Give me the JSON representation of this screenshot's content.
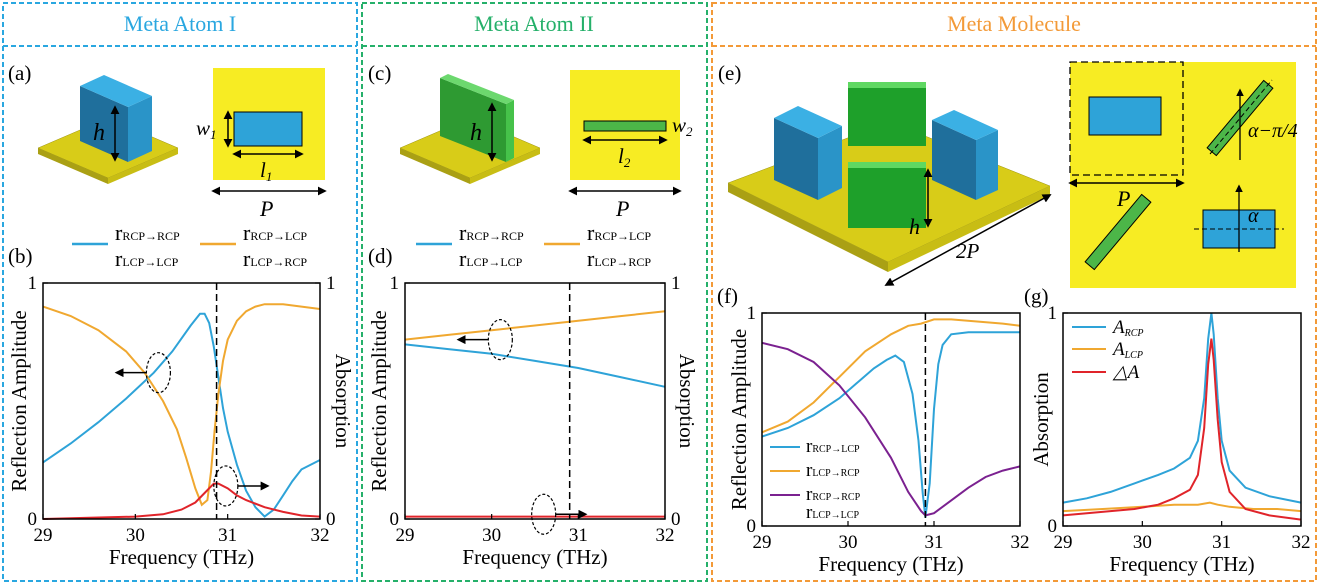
{
  "colors": {
    "blue": "#2ea3d8",
    "orange": "#f0a830",
    "red": "#e0242a",
    "purple": "#7b2190",
    "green": "#4cb648",
    "yellow_plate": "#f7ec23",
    "dark_blue_block": "#1f6f9c",
    "section_blue": "#2aa7e0",
    "section_green": "#25b06a",
    "section_orange": "#f39a38"
  },
  "sections": {
    "atom1": "Meta Atom I",
    "atom2": "Meta Atom II",
    "molecule": "Meta Molecule"
  },
  "panel_labels": {
    "a": "(a)",
    "b": "(b)",
    "c": "(c)",
    "d": "(d)",
    "e": "(e)",
    "f": "(f)",
    "g": "(g)"
  },
  "diagrams": {
    "a": {
      "h": "h",
      "w": "w",
      "w_sub": "1",
      "l": "l",
      "l_sub": "1",
      "p": "P"
    },
    "c": {
      "h": "h",
      "w": "w",
      "w_sub": "2",
      "l": "l",
      "l_sub": "2",
      "p": "P"
    },
    "e": {
      "h": "h",
      "two_p": "2P",
      "p": "P",
      "angle1": "α−π/4",
      "angle2": "α"
    }
  },
  "legend_top": {
    "rcp_rcp": {
      "main": "r",
      "sub": "RCP→RCP"
    },
    "lcp_lcp": {
      "main": "r",
      "sub": "LCP→LCP"
    },
    "rcp_lcp": {
      "main": "r",
      "sub": "RCP→LCP"
    },
    "lcp_rcp": {
      "main": "r",
      "sub": "LCP→RCP"
    }
  },
  "legend_f": {
    "rcp_lcp": {
      "main": "r",
      "sub": "RCP→LCP"
    },
    "lcp_rcp": {
      "main": "r",
      "sub": "LCP→RCP"
    },
    "rcp_rcp": {
      "main": "r",
      "sub": "RCP→RCP"
    },
    "lcp_lcp": {
      "main": "r",
      "sub": "LCP→LCP"
    }
  },
  "legend_g": {
    "a_rcp": {
      "main": "A",
      "sub": "RCP"
    },
    "a_lcp": {
      "main": "A",
      "sub": "LCP"
    },
    "delta": "△A"
  },
  "chart_data": [
    {
      "id": "b",
      "type": "line",
      "xlabel": "Frequency (THz)",
      "ylabel": "Reflection Amplitude",
      "y2label": "Absorption",
      "xlim": [
        29,
        32
      ],
      "ylim": [
        0,
        1
      ],
      "y2lim": [
        0,
        1
      ],
      "xticks": [
        "29",
        "30",
        "31",
        "32"
      ],
      "yticks_left": [
        "0",
        "1"
      ],
      "yticks_right": [
        "0",
        "1"
      ],
      "marker_x": 30.88,
      "series": [
        {
          "key": "rcp_rcp_lcp_lcp",
          "color": "blue",
          "axis": "left",
          "x": [
            29.0,
            29.3,
            29.6,
            29.9,
            30.2,
            30.4,
            30.6,
            30.7,
            30.75,
            30.8,
            30.85,
            30.9,
            30.95,
            31.0,
            31.1,
            31.2,
            31.3,
            31.4,
            31.5,
            31.6,
            31.7,
            31.8,
            32.0
          ],
          "y": [
            0.24,
            0.32,
            0.41,
            0.51,
            0.62,
            0.71,
            0.82,
            0.87,
            0.87,
            0.83,
            0.73,
            0.6,
            0.47,
            0.37,
            0.23,
            0.12,
            0.05,
            0.01,
            0.04,
            0.1,
            0.16,
            0.21,
            0.25
          ]
        },
        {
          "key": "rcp_lcp_lcp_rcp",
          "color": "orange",
          "axis": "left",
          "x": [
            29.0,
            29.3,
            29.6,
            29.9,
            30.1,
            30.3,
            30.45,
            30.55,
            30.65,
            30.72,
            30.78,
            30.82,
            30.86,
            30.9,
            30.95,
            31.0,
            31.1,
            31.2,
            31.3,
            31.4,
            31.6,
            31.8,
            32.0
          ],
          "y": [
            0.9,
            0.86,
            0.8,
            0.71,
            0.62,
            0.5,
            0.38,
            0.26,
            0.13,
            0.06,
            0.08,
            0.2,
            0.38,
            0.53,
            0.67,
            0.76,
            0.84,
            0.88,
            0.9,
            0.91,
            0.91,
            0.9,
            0.89
          ]
        },
        {
          "key": "absorption",
          "color": "red",
          "axis": "right",
          "x": [
            29.0,
            29.5,
            30.0,
            30.3,
            30.5,
            30.65,
            30.75,
            30.85,
            30.9,
            31.0,
            31.1,
            31.2,
            31.4,
            31.6,
            31.8,
            32.0
          ],
          "y": [
            0.0,
            0.005,
            0.01,
            0.02,
            0.04,
            0.07,
            0.11,
            0.15,
            0.15,
            0.13,
            0.1,
            0.08,
            0.05,
            0.03,
            0.015,
            0.01
          ]
        }
      ],
      "annotations": [
        {
          "type": "ellipse",
          "x": 30.25,
          "y": 0.62,
          "arrow": "left"
        },
        {
          "type": "ellipse",
          "x": 30.98,
          "y": 0.14,
          "arrow": "right"
        }
      ]
    },
    {
      "id": "d",
      "type": "line",
      "xlabel": "Frequency (THz)",
      "ylabel": "Reflection Amplitude",
      "y2label": "Absorption",
      "xlim": [
        29,
        32
      ],
      "ylim": [
        0,
        1
      ],
      "y2lim": [
        0,
        1
      ],
      "xticks": [
        "29",
        "30",
        "31",
        "32"
      ],
      "yticks_left": [
        "0",
        "1"
      ],
      "yticks_right": [
        "0",
        "1"
      ],
      "marker_x": 30.9,
      "series": [
        {
          "key": "rcp_rcp_lcp_lcp",
          "color": "blue",
          "axis": "left",
          "x": [
            29.0,
            29.5,
            30.0,
            30.5,
            31.0,
            31.5,
            32.0
          ],
          "y": [
            0.74,
            0.72,
            0.7,
            0.67,
            0.64,
            0.6,
            0.56
          ]
        },
        {
          "key": "rcp_lcp_lcp_rcp",
          "color": "orange",
          "axis": "left",
          "x": [
            29.0,
            29.5,
            30.0,
            30.5,
            31.0,
            31.5,
            32.0
          ],
          "y": [
            0.76,
            0.78,
            0.8,
            0.82,
            0.84,
            0.86,
            0.88
          ]
        },
        {
          "key": "absorption",
          "color": "red",
          "axis": "right",
          "x": [
            29.0,
            29.5,
            30.0,
            30.5,
            31.0,
            31.5,
            32.0
          ],
          "y": [
            0.01,
            0.01,
            0.01,
            0.01,
            0.01,
            0.01,
            0.01
          ]
        }
      ],
      "annotations": [
        {
          "type": "ellipse",
          "x": 30.1,
          "y": 0.76,
          "arrow": "left"
        },
        {
          "type": "ellipse",
          "x": 30.6,
          "y": 0.02,
          "arrow": "right"
        }
      ]
    },
    {
      "id": "f",
      "type": "line",
      "xlabel": "Frequency (THz)",
      "ylabel": "Reflection Amplitude",
      "xlim": [
        29,
        32
      ],
      "ylim": [
        0,
        1
      ],
      "xticks": [
        "29",
        "30",
        "31",
        "32"
      ],
      "yticks_left": [
        "0",
        "1"
      ],
      "marker_x": 30.9,
      "series": [
        {
          "key": "rcp_lcp",
          "color": "blue",
          "x": [
            29.0,
            29.3,
            29.6,
            29.9,
            30.1,
            30.3,
            30.45,
            30.55,
            30.65,
            30.75,
            30.82,
            30.87,
            30.9,
            30.95,
            31.0,
            31.05,
            31.1,
            31.2,
            31.4,
            31.7,
            32.0
          ],
          "y": [
            0.42,
            0.46,
            0.52,
            0.6,
            0.67,
            0.74,
            0.78,
            0.8,
            0.77,
            0.62,
            0.4,
            0.15,
            0.04,
            0.2,
            0.55,
            0.76,
            0.85,
            0.9,
            0.91,
            0.91,
            0.91
          ]
        },
        {
          "key": "lcp_rcp",
          "color": "orange",
          "x": [
            29.0,
            29.3,
            29.6,
            29.9,
            30.2,
            30.5,
            30.7,
            30.85,
            31.0,
            31.2,
            31.5,
            31.8,
            32.0
          ],
          "y": [
            0.44,
            0.49,
            0.58,
            0.7,
            0.82,
            0.9,
            0.94,
            0.95,
            0.97,
            0.97,
            0.96,
            0.95,
            0.94
          ]
        },
        {
          "key": "rcp_rcp_lcp_lcp",
          "color": "purple",
          "x": [
            29.0,
            29.3,
            29.6,
            29.9,
            30.2,
            30.5,
            30.7,
            30.85,
            30.9,
            31.0,
            31.2,
            31.4,
            31.6,
            31.8,
            32.0
          ],
          "y": [
            0.86,
            0.83,
            0.77,
            0.66,
            0.51,
            0.32,
            0.16,
            0.07,
            0.05,
            0.06,
            0.12,
            0.18,
            0.23,
            0.26,
            0.28
          ]
        }
      ],
      "legend": [
        "rcp_lcp",
        "lcp_rcp",
        "rcp_rcp",
        "lcp_lcp"
      ]
    },
    {
      "id": "g",
      "type": "line",
      "xlabel": "Frequency (THz)",
      "ylabel": "Absorption",
      "xlim": [
        29,
        32
      ],
      "ylim": [
        0,
        1
      ],
      "xticks": [
        "29",
        "30",
        "31",
        "32"
      ],
      "yticks_left": [
        "0",
        "1"
      ],
      "series": [
        {
          "key": "a_rcp",
          "color": "blue",
          "x": [
            29.0,
            29.3,
            29.6,
            29.9,
            30.2,
            30.4,
            30.6,
            30.7,
            30.78,
            30.83,
            30.87,
            30.9,
            30.95,
            31.0,
            31.1,
            31.3,
            31.6,
            32.0
          ],
          "y": [
            0.11,
            0.13,
            0.16,
            0.2,
            0.24,
            0.27,
            0.32,
            0.4,
            0.6,
            0.88,
            1.0,
            0.9,
            0.6,
            0.4,
            0.26,
            0.18,
            0.14,
            0.11
          ]
        },
        {
          "key": "a_lcp",
          "color": "orange",
          "x": [
            29.0,
            29.5,
            30.0,
            30.4,
            30.7,
            30.85,
            30.95,
            31.1,
            31.4,
            31.7,
            32.0
          ],
          "y": [
            0.07,
            0.08,
            0.09,
            0.1,
            0.1,
            0.11,
            0.1,
            0.09,
            0.08,
            0.08,
            0.07
          ]
        },
        {
          "key": "delta_a",
          "color": "red",
          "x": [
            29.0,
            29.3,
            29.6,
            29.9,
            30.2,
            30.4,
            30.6,
            30.7,
            30.78,
            30.83,
            30.87,
            30.9,
            30.95,
            31.0,
            31.1,
            31.3,
            31.6,
            32.0
          ],
          "y": [
            0.05,
            0.06,
            0.07,
            0.08,
            0.1,
            0.13,
            0.17,
            0.24,
            0.46,
            0.76,
            0.88,
            0.78,
            0.5,
            0.3,
            0.16,
            0.08,
            0.05,
            0.03
          ]
        }
      ],
      "legend": [
        "a_rcp",
        "a_lcp",
        "delta_a"
      ]
    }
  ]
}
